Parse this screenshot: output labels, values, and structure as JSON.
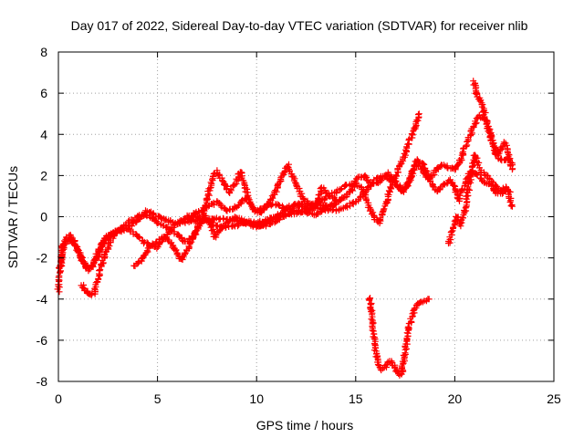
{
  "chart_data": {
    "type": "scatter",
    "title": "Day 017 of 2022, Sidereal Day-to-day VTEC variation (SDTVAR) for receiver nlib",
    "xlabel": "GPS time / hours",
    "ylabel": "SDTVAR / TECUs",
    "xlim": [
      0,
      25
    ],
    "ylim": [
      -8,
      8
    ],
    "xticks": [
      0,
      5,
      10,
      15,
      20,
      25
    ],
    "yticks": [
      -8,
      -6,
      -4,
      -2,
      0,
      2,
      4,
      6,
      8
    ],
    "grid": true,
    "marker": "+",
    "color": "#ff0000",
    "series": [
      {
        "name": "track-1",
        "points": [
          [
            0,
            -3.6
          ],
          [
            0.2,
            -1.5
          ],
          [
            0.4,
            -1.0
          ],
          [
            0.6,
            -0.9
          ],
          [
            0.8,
            -1.2
          ],
          [
            1.0,
            -1.7
          ],
          [
            1.2,
            -2.1
          ],
          [
            1.4,
            -2.4
          ],
          [
            1.6,
            -2.5
          ],
          [
            1.8,
            -2.2
          ],
          [
            2.0,
            -1.7
          ],
          [
            2.3,
            -1.1
          ],
          [
            2.7,
            -0.8
          ],
          [
            3.2,
            -0.6
          ],
          [
            3.7,
            -0.4
          ],
          [
            4.2,
            0.0
          ],
          [
            4.5,
            0.3
          ],
          [
            5.0,
            0.0
          ],
          [
            5.5,
            -0.2
          ],
          [
            6.0,
            -0.3
          ],
          [
            7.0,
            -0.2
          ],
          [
            8.0,
            -0.1
          ],
          [
            9.0,
            -0.2
          ],
          [
            10.0,
            -0.3
          ],
          [
            11.0,
            0.0
          ],
          [
            12.0,
            0.2
          ],
          [
            13.0,
            0.4
          ],
          [
            14.0,
            0.3
          ],
          [
            15.0,
            0.7
          ],
          [
            15.5,
            1.2
          ],
          [
            16.0,
            1.8
          ],
          [
            16.5,
            2.0
          ],
          [
            17.0,
            1.6
          ],
          [
            17.3,
            1.2
          ],
          [
            17.6,
            1.5
          ],
          [
            18.0,
            2.5
          ],
          [
            18.3,
            2.4
          ],
          [
            18.7,
            1.8
          ],
          [
            19.0,
            2.2
          ],
          [
            19.3,
            2.5
          ],
          [
            19.7,
            2.4
          ],
          [
            20.0,
            2.3
          ],
          [
            20.3,
            2.8
          ],
          [
            20.6,
            3.6
          ],
          [
            20.9,
            4.3
          ],
          [
            21.2,
            4.9
          ],
          [
            21.5,
            4.8
          ],
          [
            21.8,
            4.0
          ],
          [
            22.1,
            3.0
          ],
          [
            22.4,
            2.7
          ],
          [
            22.7,
            2.8
          ],
          [
            22.9,
            2.6
          ]
        ]
      },
      {
        "name": "track-2",
        "points": [
          [
            0.05,
            -2.5
          ],
          [
            0.3,
            -1.3
          ],
          [
            0.6,
            -1.1
          ],
          [
            1.0,
            -1.6
          ],
          [
            1.3,
            -2.3
          ],
          [
            1.5,
            -2.6
          ],
          [
            1.7,
            -2.4
          ],
          [
            2.0,
            -1.9
          ],
          [
            2.3,
            -1.3
          ],
          [
            2.6,
            -0.9
          ],
          [
            3.0,
            -0.7
          ],
          [
            3.5,
            -0.6
          ],
          [
            4.0,
            -0.9
          ],
          [
            4.3,
            -1.2
          ],
          [
            4.6,
            -1.4
          ],
          [
            5.0,
            -1.5
          ],
          [
            5.3,
            -1.1
          ],
          [
            5.7,
            -0.6
          ],
          [
            6.0,
            -0.3
          ],
          [
            6.5,
            -0.1
          ],
          [
            7.0,
            0.0
          ],
          [
            7.5,
            -0.2
          ],
          [
            8.0,
            -0.4
          ],
          [
            8.5,
            -0.5
          ],
          [
            9.0,
            -0.4
          ],
          [
            9.5,
            -0.3
          ],
          [
            10.0,
            -0.5
          ],
          [
            10.5,
            -0.4
          ],
          [
            11.0,
            -0.2
          ],
          [
            11.5,
            0.1
          ],
          [
            12.0,
            0.3
          ],
          [
            12.5,
            0.2
          ],
          [
            13.0,
            0.1
          ],
          [
            13.5,
            0.4
          ],
          [
            14.0,
            0.7
          ],
          [
            14.3,
            0.9
          ]
        ]
      },
      {
        "name": "track-3",
        "points": [
          [
            1.2,
            -3.3
          ],
          [
            1.4,
            -3.6
          ],
          [
            1.6,
            -3.8
          ],
          [
            1.8,
            -3.7
          ],
          [
            2.0,
            -3.0
          ],
          [
            2.3,
            -2.0
          ],
          [
            2.6,
            -1.2
          ],
          [
            3.0,
            -0.7
          ],
          [
            3.5,
            -0.3
          ],
          [
            4.0,
            0.0
          ],
          [
            4.4,
            0.1
          ],
          [
            4.8,
            -0.1
          ],
          [
            5.2,
            -0.4
          ],
          [
            5.6,
            -0.6
          ],
          [
            6.0,
            -0.9
          ],
          [
            6.4,
            -1.2
          ],
          [
            6.8,
            -1.0
          ],
          [
            7.2,
            -0.2
          ],
          [
            7.5,
            0.8
          ],
          [
            7.8,
            2.0
          ],
          [
            8.0,
            2.2
          ],
          [
            8.3,
            1.7
          ],
          [
            8.6,
            1.2
          ],
          [
            8.9,
            1.6
          ],
          [
            9.2,
            2.2
          ],
          [
            9.5,
            1.2
          ],
          [
            9.8,
            0.4
          ],
          [
            10.2,
            0.2
          ],
          [
            10.6,
            0.6
          ],
          [
            11.0,
            1.3
          ],
          [
            11.3,
            2.0
          ],
          [
            11.6,
            2.5
          ],
          [
            12.0,
            1.5
          ],
          [
            12.4,
            0.8
          ],
          [
            12.8,
            0.5
          ],
          [
            13.2,
            0.7
          ],
          [
            13.6,
            1.0
          ],
          [
            14.0,
            1.2
          ],
          [
            14.5,
            1.5
          ],
          [
            15.0,
            1.6
          ],
          [
            15.3,
            1.4
          ],
          [
            15.6,
            0.7
          ],
          [
            15.9,
            0.0
          ],
          [
            16.2,
            -0.3
          ],
          [
            16.5,
            0.5
          ],
          [
            16.8,
            1.5
          ],
          [
            17.1,
            2.2
          ],
          [
            17.4,
            2.8
          ],
          [
            17.7,
            3.6
          ],
          [
            18.0,
            4.4
          ],
          [
            18.2,
            5.0
          ]
        ]
      },
      {
        "name": "track-4",
        "points": [
          [
            3.8,
            -2.4
          ],
          [
            4.1,
            -2.2
          ],
          [
            4.4,
            -1.8
          ],
          [
            4.7,
            -1.4
          ],
          [
            5.0,
            -1.2
          ],
          [
            5.3,
            -1.0
          ],
          [
            5.7,
            -1.3
          ],
          [
            6.0,
            -1.8
          ],
          [
            6.2,
            -2.1
          ],
          [
            6.5,
            -1.6
          ],
          [
            6.8,
            -1.0
          ],
          [
            7.1,
            -0.4
          ],
          [
            7.4,
            0.0
          ],
          [
            7.7,
            -0.4
          ],
          [
            7.9,
            -1.0
          ],
          [
            8.2,
            -0.6
          ],
          [
            8.6,
            -0.2
          ],
          [
            9.0,
            0.0
          ],
          [
            9.5,
            -0.3
          ],
          [
            10.0,
            -0.5
          ],
          [
            10.5,
            -0.3
          ],
          [
            11.0,
            0.0
          ],
          [
            11.5,
            0.3
          ],
          [
            12.0,
            0.6
          ],
          [
            12.5,
            0.6
          ],
          [
            13.0,
            0.5
          ],
          [
            13.3,
            1.4
          ],
          [
            13.6,
            1.1
          ],
          [
            14.0,
            0.8
          ],
          [
            14.4,
            0.9
          ],
          [
            14.8,
            1.3
          ],
          [
            15.1,
            1.9
          ],
          [
            15.4,
            2.0
          ],
          [
            15.8,
            1.6
          ],
          [
            16.2,
            1.7
          ],
          [
            16.6,
            2.1
          ],
          [
            17.0,
            1.7
          ],
          [
            17.4,
            1.2
          ],
          [
            17.8,
            1.9
          ],
          [
            18.1,
            2.8
          ],
          [
            18.4,
            2.5
          ],
          [
            18.8,
            1.7
          ],
          [
            19.1,
            1.2
          ],
          [
            19.4,
            1.5
          ],
          [
            19.7,
            1.8
          ],
          [
            20.0,
            1.5
          ],
          [
            20.2,
            0.8
          ],
          [
            20.5,
            1.6
          ],
          [
            20.8,
            2.2
          ],
          [
            21.1,
            2.1
          ],
          [
            21.4,
            1.7
          ],
          [
            21.8,
            1.6
          ],
          [
            22.1,
            1.1
          ],
          [
            22.5,
            1.4
          ],
          [
            22.8,
            1.2
          ]
        ]
      },
      {
        "name": "track-5",
        "points": [
          [
            6.5,
            0.0
          ],
          [
            7.0,
            0.2
          ],
          [
            7.5,
            0.5
          ],
          [
            8.0,
            0.7
          ],
          [
            8.5,
            0.3
          ],
          [
            9.0,
            0.5
          ],
          [
            9.5,
            0.9
          ],
          [
            10.0,
            0.2
          ],
          [
            10.5,
            0.6
          ],
          [
            11.0,
            0.6
          ],
          [
            11.5,
            0.4
          ],
          [
            12.0,
            0.6
          ],
          [
            12.5,
            0.4
          ],
          [
            13.0,
            0.7
          ],
          [
            13.5,
            0.5
          ],
          [
            14.0,
            0.6
          ]
        ]
      },
      {
        "name": "track-6",
        "points": [
          [
            19.7,
            -1.3
          ],
          [
            19.9,
            -0.6
          ],
          [
            20.1,
            0.0
          ],
          [
            20.3,
            -0.4
          ],
          [
            20.5,
            0.2
          ],
          [
            20.7,
            1.4
          ],
          [
            20.9,
            2.3
          ],
          [
            21.0,
            3.0
          ],
          [
            21.1,
            2.8
          ],
          [
            21.3,
            2.2
          ],
          [
            21.6,
            2.0
          ],
          [
            22.0,
            1.6
          ],
          [
            22.4,
            1.1
          ],
          [
            22.6,
            1.4
          ],
          [
            22.8,
            0.8
          ],
          [
            22.9,
            0.5
          ]
        ]
      },
      {
        "name": "track-7",
        "points": [
          [
            20.95,
            6.6
          ],
          [
            21.1,
            6.0
          ],
          [
            21.3,
            5.6
          ],
          [
            21.5,
            5.0
          ],
          [
            21.7,
            4.2
          ],
          [
            21.9,
            3.6
          ],
          [
            22.1,
            3.0
          ],
          [
            22.3,
            3.2
          ],
          [
            22.5,
            3.6
          ],
          [
            22.7,
            3.1
          ],
          [
            22.9,
            2.3
          ]
        ]
      },
      {
        "name": "track-8",
        "points": [
          [
            15.7,
            -3.9
          ],
          [
            15.85,
            -5.0
          ],
          [
            15.95,
            -6.2
          ],
          [
            16.1,
            -7.0
          ],
          [
            16.3,
            -7.4
          ],
          [
            16.5,
            -7.3
          ],
          [
            16.7,
            -7.0
          ],
          [
            16.9,
            -7.2
          ],
          [
            17.1,
            -7.6
          ],
          [
            17.3,
            -7.7
          ],
          [
            17.5,
            -6.5
          ],
          [
            17.7,
            -5.3
          ],
          [
            17.9,
            -4.7
          ],
          [
            18.1,
            -4.3
          ],
          [
            18.4,
            -4.1
          ],
          [
            18.7,
            -4.0
          ]
        ]
      }
    ]
  }
}
